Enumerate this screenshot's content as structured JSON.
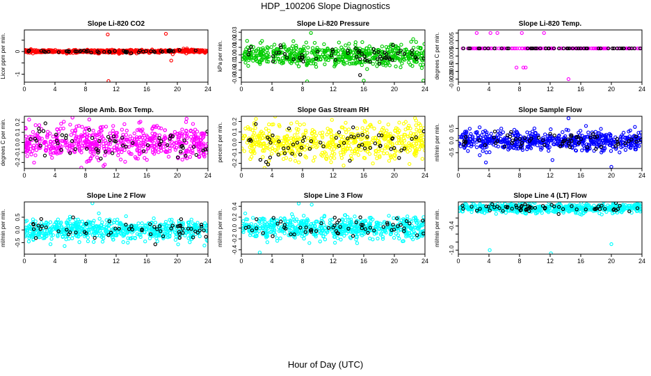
{
  "figure": {
    "title": "HDP_100206  Slope Diagnostics",
    "xlabel": "Hour of Day (UTC)"
  },
  "chart_data": [
    {
      "type": "scatter",
      "title": "Slope Li-820 CO2",
      "ylabel": "Licor ppm per min.",
      "color": "#ff0000",
      "xlim": [
        0,
        24
      ],
      "ylim": [
        -1.35,
        0.95
      ],
      "xticks": [
        "0",
        "4",
        "8",
        "12",
        "16",
        "20",
        "24"
      ],
      "yticks": [
        -1,
        -0.5,
        0,
        0.5
      ],
      "ytick_labels": [
        "-1",
        "",
        "0",
        ""
      ],
      "spread": 0.035,
      "trend": [
        [
          0,
          0.01
        ],
        [
          8,
          0.0
        ],
        [
          16,
          0.0
        ],
        [
          22,
          0.04
        ],
        [
          24,
          0.0
        ]
      ],
      "n_main": 560,
      "n_black": 50,
      "outliers": [
        [
          10.9,
          0.75
        ],
        [
          11.0,
          -1.3
        ],
        [
          18.5,
          0.78
        ],
        [
          19.2,
          -0.4
        ],
        [
          19.4,
          -0.12
        ]
      ]
    },
    {
      "type": "scatter",
      "title": "Slope Li-820 Pressure",
      "ylabel": "kPa per min.",
      "color": "#00cc00",
      "xlim": [
        0,
        24
      ],
      "ylim": [
        -0.036,
        0.033
      ],
      "xticks": [
        "0",
        "4",
        "8",
        "12",
        "16",
        "20",
        "24"
      ],
      "yticks": [
        -0.03,
        -0.02,
        -0.01,
        0,
        0.01,
        0.02,
        0.03
      ],
      "ytick_labels": [
        "-0.03",
        "-0.02",
        "-0.01",
        "0.00",
        "0.01",
        "0.02",
        "0.03"
      ],
      "spread": 0.007,
      "trend": [
        [
          0,
          -0.002
        ],
        [
          6,
          0.001
        ],
        [
          10,
          -0.002
        ],
        [
          16,
          0.0
        ],
        [
          24,
          -0.001
        ]
      ],
      "n_main": 560,
      "n_black": 60,
      "outliers": [
        [
          9.1,
          0.029
        ],
        [
          8.6,
          -0.035
        ],
        [
          23.8,
          -0.034
        ],
        [
          16.0,
          -0.034
        ],
        [
          2.5,
          0.016
        ]
      ]
    },
    {
      "type": "scatter",
      "title": "Slope Li-820 Temp.",
      "ylabel": "degrees C per min.",
      "color": "#ff00ff",
      "xlim": [
        0,
        24
      ],
      "ylim": [
        -0.0022,
        0.0012
      ],
      "xticks": [
        "0",
        "4",
        "8",
        "12",
        "16",
        "20",
        "24"
      ],
      "yticks": [
        -0.002,
        -0.0015,
        -0.001,
        -0.0005,
        0,
        0.0005,
        0.001
      ],
      "ytick_labels": [
        "-0.0020",
        "-0.0015",
        "",
        "-0.0005",
        "",
        "0.0005",
        ""
      ],
      "spread": 0,
      "trend": [
        [
          0,
          0
        ],
        [
          24,
          0
        ]
      ],
      "n_main": 160,
      "n_black": 50,
      "outliers": [
        [
          2.4,
          0.001
        ],
        [
          4.2,
          0.001
        ],
        [
          5.1,
          0.001
        ],
        [
          8.3,
          0.001
        ],
        [
          11.2,
          0.001
        ],
        [
          7.6,
          -0.00125
        ],
        [
          8.5,
          -0.00125
        ],
        [
          8.8,
          -0.00125
        ],
        [
          14.4,
          -0.002
        ]
      ]
    },
    {
      "type": "scatter",
      "title": "Slope Amb. Box Temp.",
      "ylabel": "degrees C per min.",
      "color": "#ff00ff",
      "xlim": [
        0,
        24
      ],
      "ylim": [
        -0.26,
        0.26
      ],
      "xticks": [
        "0",
        "4",
        "8",
        "12",
        "16",
        "20",
        "24"
      ],
      "yticks": [
        -0.2,
        -0.1,
        0,
        0.1,
        0.2
      ],
      "ytick_labels": [
        "-0.2",
        "-0.1",
        "0.0",
        "0.1",
        "0.2"
      ],
      "spread": 0.085,
      "trend": [
        [
          0,
          0.0
        ],
        [
          24,
          0.0
        ]
      ],
      "n_main": 600,
      "n_black": 60,
      "outliers": []
    },
    {
      "type": "scatter",
      "title": "Slope Gas Stream RH",
      "ylabel": "percent per min.",
      "color": "#ffff00",
      "xlim": [
        0,
        24
      ],
      "ylim": [
        -0.25,
        0.25
      ],
      "xticks": [
        "0",
        "4",
        "8",
        "12",
        "16",
        "20",
        "24"
      ],
      "yticks": [
        -0.2,
        -0.1,
        0,
        0.1,
        0.2
      ],
      "ytick_labels": [
        "-0.2",
        "-0.1",
        "0.0",
        "0.1",
        "0.2"
      ],
      "spread": 0.085,
      "trend": [
        [
          0,
          0.0
        ],
        [
          24,
          0.0
        ]
      ],
      "n_main": 600,
      "n_black": 60,
      "outliers": []
    },
    {
      "type": "scatter",
      "title": "Slope Sample Flow",
      "ylabel": "ml/min per min.",
      "color": "#0000ff",
      "xlim": [
        0,
        24
      ],
      "ylim": [
        -1.15,
        1.0
      ],
      "xticks": [
        "0",
        "4",
        "8",
        "12",
        "16",
        "20",
        "24"
      ],
      "yticks": [
        -0.5,
        0,
        0.5
      ],
      "ytick_labels": [
        "-0.5",
        "0.0",
        "0.5"
      ],
      "spread": 0.2,
      "trend": [
        [
          0,
          0.0
        ],
        [
          24,
          0.0
        ]
      ],
      "n_main": 600,
      "n_black": 60,
      "outliers": [
        [
          14.4,
          0.92
        ],
        [
          20.0,
          -1.08
        ],
        [
          3.6,
          -0.9
        ],
        [
          12.3,
          -0.8
        ],
        [
          2.8,
          -0.6
        ]
      ]
    },
    {
      "type": "scatter",
      "title": "Slope Line 2 Flow",
      "ylabel": "ml/min per min.",
      "color": "#00ffff",
      "xlim": [
        0,
        24
      ],
      "ylim": [
        -0.95,
        1.1
      ],
      "xticks": [
        "0",
        "4",
        "8",
        "12",
        "16",
        "20",
        "24"
      ],
      "yticks": [
        -0.5,
        0,
        0.5
      ],
      "ytick_labels": [
        "-0.5",
        "0.0",
        "0.5"
      ],
      "spread": 0.2,
      "trend": [
        [
          0,
          0.0
        ],
        [
          24,
          0.0
        ]
      ],
      "n_main": 600,
      "n_black": 60,
      "outliers": [
        [
          8.9,
          1.05
        ]
      ]
    },
    {
      "type": "scatter",
      "title": "Slope Line 3 Flow",
      "ylabel": "ml/min per min.",
      "color": "#00ffff",
      "xlim": [
        0,
        24
      ],
      "ylim": [
        -0.48,
        0.48
      ],
      "xticks": [
        "0",
        "4",
        "8",
        "12",
        "16",
        "20",
        "24"
      ],
      "yticks": [
        -0.4,
        -0.2,
        0,
        0.2,
        0.4
      ],
      "ytick_labels": [
        "-0.4",
        "-0.2",
        "0.0",
        "0.2",
        "0.4"
      ],
      "spread": 0.1,
      "trend": [
        [
          0,
          0.0
        ],
        [
          24,
          0.0
        ]
      ],
      "n_main": 600,
      "n_black": 60,
      "outliers": [
        [
          2.4,
          -0.45
        ],
        [
          7.5,
          0.45
        ],
        [
          9.2,
          0.43
        ]
      ]
    },
    {
      "type": "scatter",
      "title": "Slope Line 4 (LT) Flow",
      "ylabel": "ml/min per min.",
      "color": "#00ffff",
      "xlim": [
        0,
        24
      ],
      "ylim": [
        -1.1,
        0.2
      ],
      "xticks": [
        "0",
        "4",
        "8",
        "12",
        "16",
        "20",
        "24"
      ],
      "yticks": [
        -1.0,
        -0.8,
        -0.6,
        -0.4,
        -0.2
      ],
      "ytick_labels": [
        "-1.0",
        "",
        "",
        "-0.4",
        ""
      ],
      "spread": 0.055,
      "trend": [
        [
          0,
          0.04
        ],
        [
          24,
          0.04
        ]
      ],
      "n_main": 560,
      "n_black": 60,
      "outliers": [
        [
          4.1,
          -1.0
        ],
        [
          12.1,
          -1.08
        ],
        [
          20.0,
          -0.85
        ]
      ]
    }
  ]
}
